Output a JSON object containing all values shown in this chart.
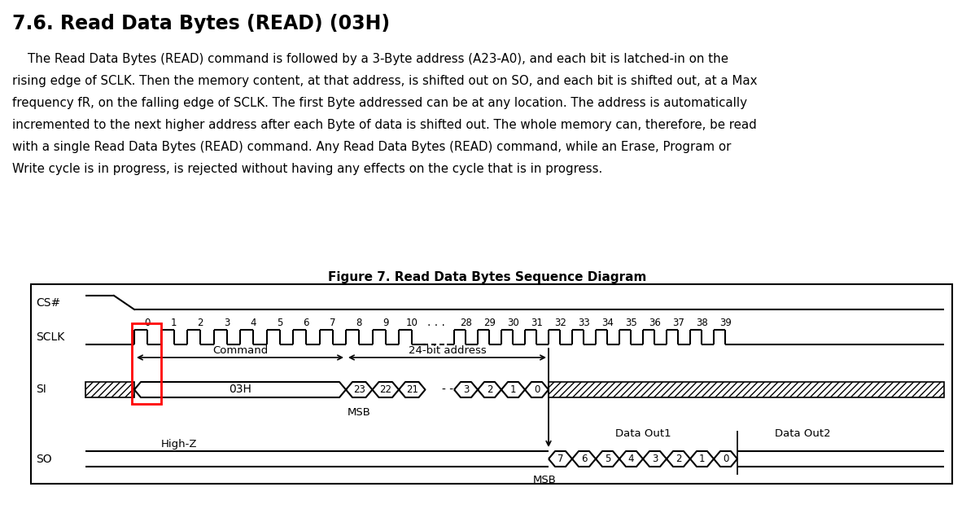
{
  "title": "7.6. Read Data Bytes (READ) (03H)",
  "figure_caption": "Figure 7. Read Data Bytes Sequence Diagram",
  "body_text": [
    "    The Read Data Bytes (READ) command is followed by a 3-Byte address (A23-A0), and each bit is latched-in on the",
    "rising edge of SCLK. Then the memory content, at that address, is shifted out on SO, and each bit is shifted out, at a Max",
    "frequency fR, on the falling edge of SCLK. The first Byte addressed can be at any location. The address is automatically",
    "incremented to the next higher address after each Byte of data is shifted out. The whole memory can, therefore, be read",
    "with a single Read Data Bytes (READ) command. Any Read Data Bytes (READ) command, while an Erase, Program or",
    "Write cycle is in progress, is rejected without having any effects on the cycle that is in progress."
  ],
  "bg_color": "#ffffff",
  "text_color": "#000000",
  "red_rect_color": "#ff0000",
  "clock_numbers_first": [
    "0",
    "1",
    "2",
    "3",
    "4",
    "5",
    "6",
    "7",
    "8",
    "9",
    "10"
  ],
  "clock_numbers_second": [
    "28",
    "29",
    "30",
    "31",
    "32",
    "33",
    "34",
    "35",
    "36",
    "37",
    "38",
    "39"
  ]
}
